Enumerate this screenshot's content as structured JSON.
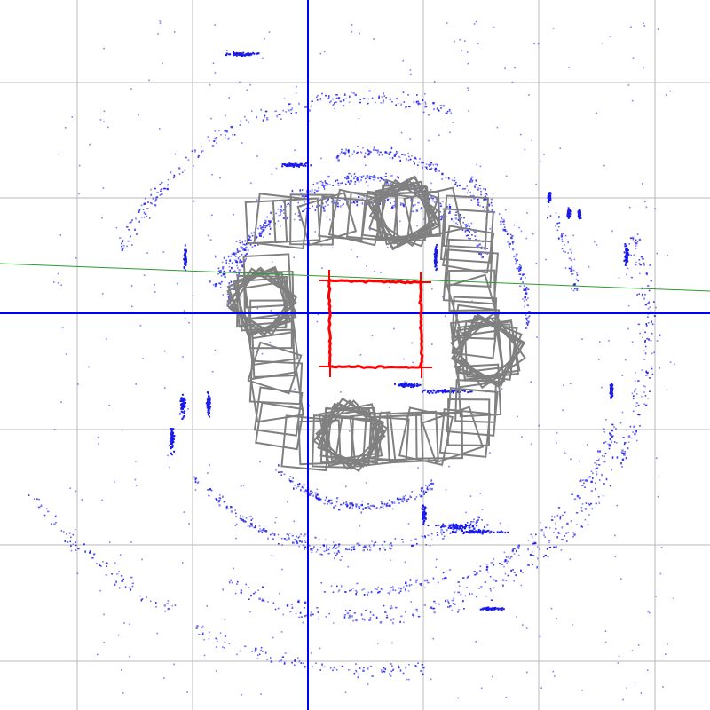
{
  "viewer": {
    "view": "slam-map-top-down",
    "colors": {
      "background": "#ffffff",
      "grid": "#b8b8b8",
      "axis": "#0000ff",
      "map_points": "#1a1aee",
      "keyframes": "#808080",
      "trajectory": "#ff0000",
      "heading_line": "#2f9a2f"
    }
  }
}
